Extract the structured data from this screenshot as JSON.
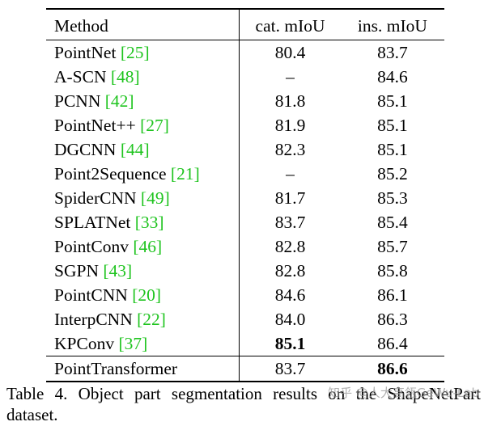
{
  "table": {
    "headers": {
      "method": "Method",
      "cat_miou": "cat. mIoU",
      "ins_miou": "ins. mIoU"
    },
    "rows": [
      {
        "method": "PointNet",
        "cite": "[25]",
        "cat": "80.4",
        "ins": "83.7"
      },
      {
        "method": "A-SCN",
        "cite": "[48]",
        "cat": "–",
        "ins": "84.6"
      },
      {
        "method": "PCNN",
        "cite": "[42]",
        "cat": "81.8",
        "ins": "85.1"
      },
      {
        "method": "PointNet++",
        "cite": "[27]",
        "cat": "81.9",
        "ins": "85.1"
      },
      {
        "method": "DGCNN",
        "cite": "[44]",
        "cat": "82.3",
        "ins": "85.1"
      },
      {
        "method": "Point2Sequence",
        "cite": "[21]",
        "cat": "–",
        "ins": "85.2"
      },
      {
        "method": "SpiderCNN",
        "cite": "[49]",
        "cat": "81.7",
        "ins": "85.3"
      },
      {
        "method": "SPLATNet",
        "cite": "[33]",
        "cat": "83.7",
        "ins": "85.4"
      },
      {
        "method": "PointConv",
        "cite": "[46]",
        "cat": "82.8",
        "ins": "85.7"
      },
      {
        "method": "SGPN",
        "cite": "[43]",
        "cat": "82.8",
        "ins": "85.8"
      },
      {
        "method": "PointCNN",
        "cite": "[20]",
        "cat": "84.6",
        "ins": "86.1"
      },
      {
        "method": "InterpCNN",
        "cite": "[22]",
        "cat": "84.0",
        "ins": "86.3"
      },
      {
        "method": "KPConv",
        "cite": "[37]",
        "cat": "85.1",
        "ins": "86.4"
      }
    ],
    "last_row": {
      "method": "PointTransformer",
      "cat": "83.7",
      "ins": "86.6"
    }
  },
  "caption": "Table 4. Object part segmentation results on the ShapeNetPart dataset.",
  "watermark": "知乎 @人大高瓴GeWu-Lab",
  "colors": {
    "citation": "#1fc41f",
    "text": "#000000",
    "background": "#ffffff"
  }
}
